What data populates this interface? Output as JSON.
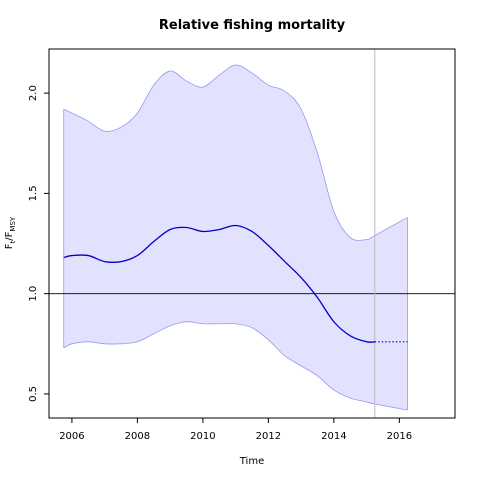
{
  "chart_data": {
    "type": "line",
    "title": "Relative fishing mortality",
    "xlabel": "Time",
    "ylabel": {
      "main": "F",
      "sub1": "t",
      "sep": "/F",
      "sub2": "MSY"
    },
    "xlim": [
      2005.3,
      2017.7
    ],
    "ylim": [
      0.38,
      2.22
    ],
    "x_ticks": [
      2006,
      2008,
      2010,
      2012,
      2014,
      2016
    ],
    "y_ticks": [
      0.5,
      1.0,
      1.5,
      2.0
    ],
    "reference_hline": 1.0,
    "reference_vline": 2015.25,
    "series": [
      {
        "role": "estimate",
        "color": "#0000cc",
        "x": [
          2005.75,
          2006.0,
          2006.5,
          2007.0,
          2007.5,
          2008.0,
          2008.5,
          2009.0,
          2009.5,
          2010.0,
          2010.5,
          2011.0,
          2011.5,
          2012.0,
          2012.5,
          2013.0,
          2013.5,
          2014.0,
          2014.5,
          2015.0,
          2015.25
        ],
        "y": [
          1.18,
          1.19,
          1.19,
          1.16,
          1.16,
          1.19,
          1.26,
          1.32,
          1.33,
          1.31,
          1.32,
          1.34,
          1.31,
          1.24,
          1.16,
          1.08,
          0.98,
          0.86,
          0.79,
          0.76,
          0.76
        ]
      },
      {
        "role": "forecast",
        "color": "#0000cc",
        "style": "dotted",
        "x": [
          2015.25,
          2016.25
        ],
        "y": [
          0.76,
          0.76
        ]
      }
    ],
    "confidence_band": {
      "color": "#e2e2ff",
      "edge_color": "#9999ee",
      "x": [
        2005.75,
        2006.0,
        2006.5,
        2007.0,
        2007.5,
        2008.0,
        2008.5,
        2009.0,
        2009.5,
        2010.0,
        2010.5,
        2011.0,
        2011.5,
        2012.0,
        2012.5,
        2013.0,
        2013.5,
        2014.0,
        2014.5,
        2015.0,
        2015.25,
        2016.25
      ],
      "upper": [
        1.92,
        1.9,
        1.86,
        1.81,
        1.83,
        1.9,
        2.04,
        2.11,
        2.06,
        2.03,
        2.09,
        2.14,
        2.1,
        2.04,
        2.01,
        1.92,
        1.7,
        1.41,
        1.28,
        1.27,
        1.29,
        1.38
      ],
      "lower": [
        0.73,
        0.75,
        0.76,
        0.75,
        0.75,
        0.76,
        0.8,
        0.84,
        0.86,
        0.85,
        0.85,
        0.85,
        0.83,
        0.77,
        0.69,
        0.64,
        0.59,
        0.52,
        0.48,
        0.46,
        0.45,
        0.42
      ]
    }
  }
}
